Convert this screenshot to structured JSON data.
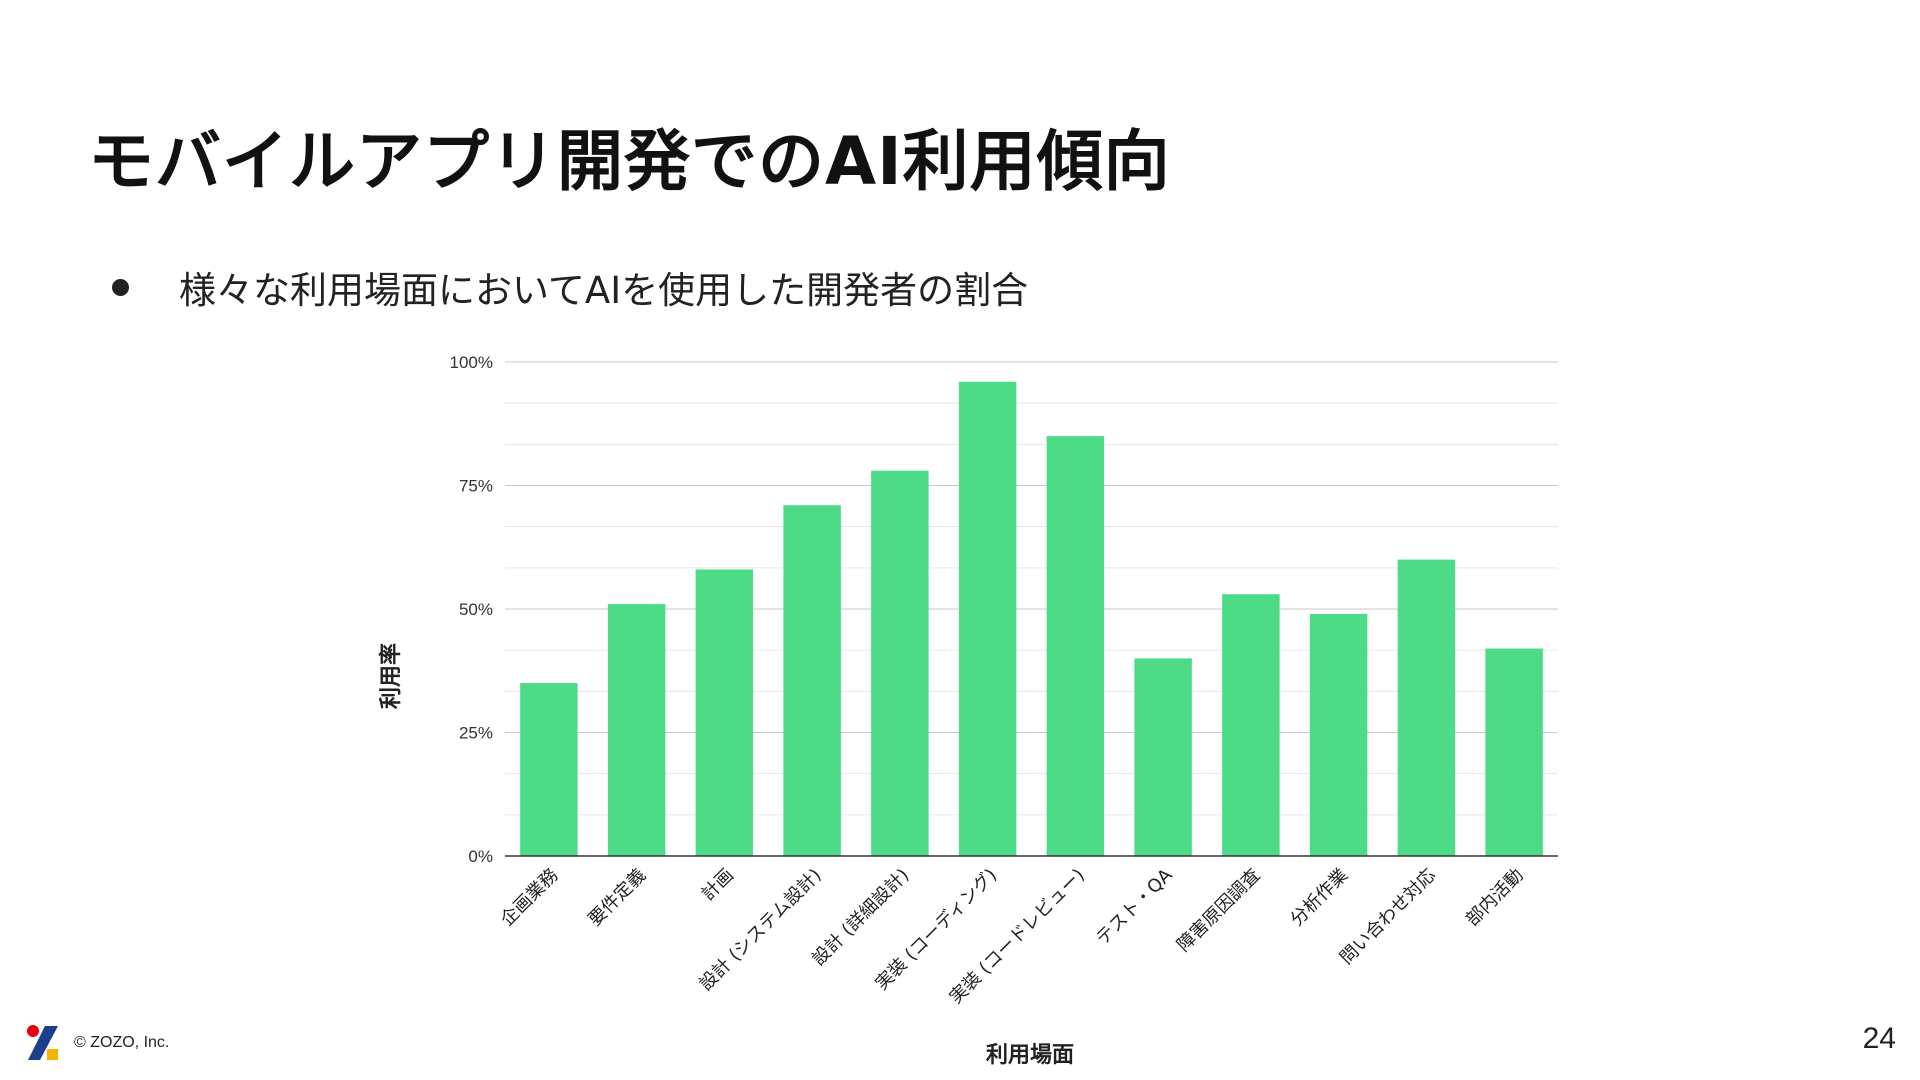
{
  "slide": {
    "title": "モバイルアプリ開発でのAI利用傾向",
    "bullet": "様々な利用場面においてAIを使用した開発者の割合",
    "copyright": "© ZOZO, Inc.",
    "page_number": "24"
  },
  "colors": {
    "bar": "#4ddb88",
    "gridline": "#e6e6e6",
    "major_gridline": "#c8c8c8",
    "logo_red": "#e60012",
    "logo_navy": "#1d3d8f",
    "logo_yellow": "#f2b500"
  },
  "chart_data": {
    "type": "bar",
    "categories": [
      "企画業務",
      "要件定義",
      "計画",
      "設計 (システム設計)",
      "設計 (詳細設計)",
      "実装 (コーディング)",
      "実装 (コードレビュー)",
      "テスト・QA",
      "障害原因調査",
      "分析作業",
      "問い合わせ対応",
      "部内活動"
    ],
    "values": [
      35,
      51,
      58,
      71,
      78,
      96,
      85,
      40,
      53,
      49,
      60,
      42
    ],
    "ylim": [
      0,
      100
    ],
    "yticks": [
      0,
      25,
      50,
      75,
      100
    ],
    "ytick_labels": [
      "0%",
      "25%",
      "50%",
      "75%",
      "100%"
    ],
    "minor_step": 8.333,
    "xlabel": "利用場面",
    "ylabel": "利用率",
    "grid": true,
    "legend": "none"
  }
}
